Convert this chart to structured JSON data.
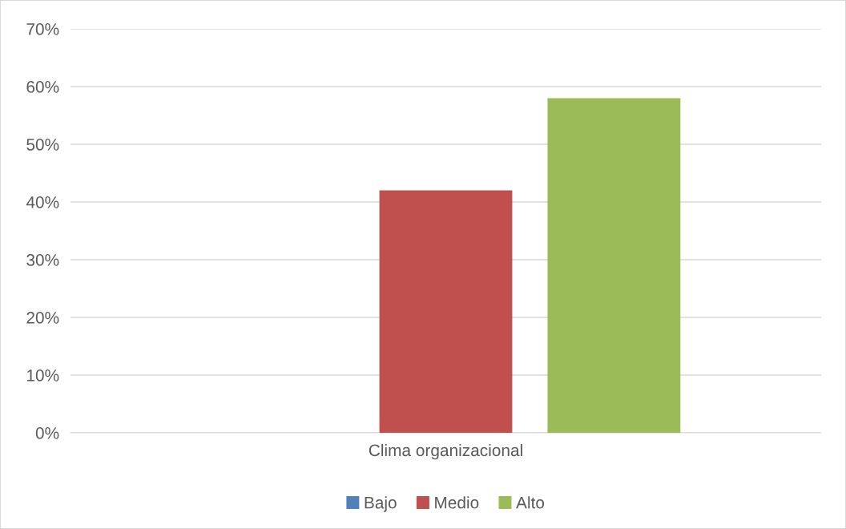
{
  "chart_data": {
    "type": "bar",
    "categories": [
      "Clima organizacional"
    ],
    "series": [
      {
        "name": "Bajo",
        "color": "#4f81bd",
        "values": [
          0
        ]
      },
      {
        "name": "Medio",
        "color": "#c0504d",
        "values": [
          42
        ]
      },
      {
        "name": "Alto",
        "color": "#9bbb59",
        "values": [
          58
        ]
      }
    ],
    "ylim": [
      0,
      70
    ],
    "yticks": [
      {
        "value": 0,
        "label": "0%"
      },
      {
        "value": 10,
        "label": "10%"
      },
      {
        "value": 20,
        "label": "20%"
      },
      {
        "value": 30,
        "label": "30%"
      },
      {
        "value": 40,
        "label": "40%"
      },
      {
        "value": 50,
        "label": "50%"
      },
      {
        "value": 60,
        "label": "60%"
      },
      {
        "value": 70,
        "label": "70%"
      }
    ],
    "grid": "y",
    "legend": "bottom"
  }
}
